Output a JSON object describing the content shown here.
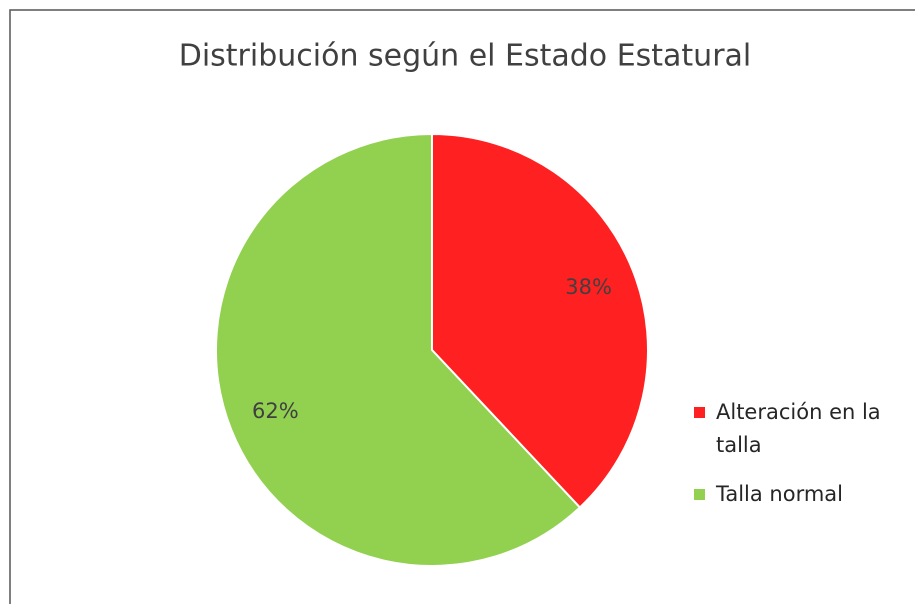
{
  "chart_data": {
    "type": "pie",
    "title": "Distribución según el Estado Estatural",
    "categories": [
      "Alteración en la talla",
      "Talla normal"
    ],
    "values": [
      38,
      62
    ],
    "value_labels": [
      "38%",
      "62%"
    ],
    "colors": [
      "#ff2121",
      "#92d050"
    ],
    "legend": "right"
  }
}
